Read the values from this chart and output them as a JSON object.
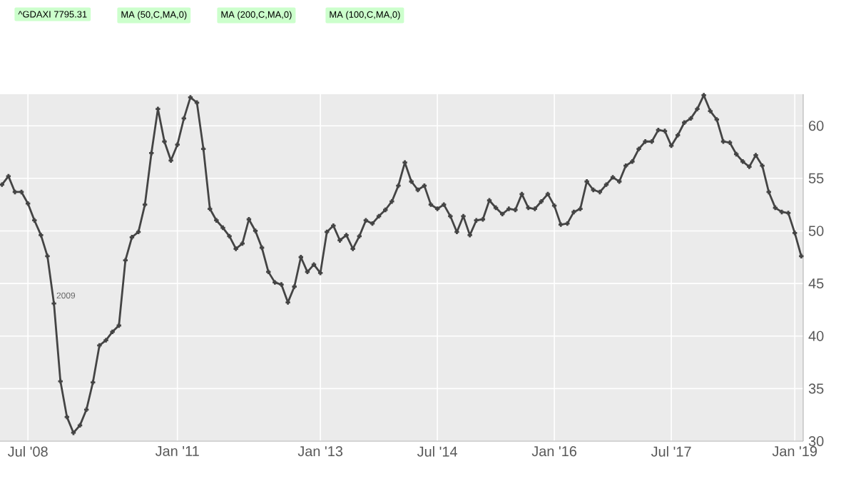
{
  "chart_data": {
    "type": "line",
    "categories": [
      null,
      null,
      null,
      null,
      "Jul '08",
      null,
      null,
      null,
      null,
      null,
      null,
      null,
      null,
      null,
      null,
      null,
      null,
      null,
      null,
      null,
      null,
      null,
      null,
      null,
      null,
      null,
      null,
      "Jan '11",
      null,
      null,
      null,
      null,
      null,
      null,
      null,
      null,
      null,
      null,
      null,
      null,
      null,
      null,
      null,
      null,
      null,
      null,
      null,
      null,
      null,
      "Jan '13",
      null,
      null,
      null,
      null,
      null,
      null,
      null,
      null,
      null,
      null,
      null,
      null,
      null,
      null,
      null,
      null,
      null,
      "Jul '14",
      null,
      null,
      null,
      null,
      null,
      null,
      null,
      null,
      null,
      null,
      null,
      null,
      null,
      null,
      null,
      null,
      null,
      "Jan '16",
      null,
      null,
      null,
      null,
      null,
      null,
      null,
      null,
      null,
      null,
      null,
      null,
      null,
      null,
      null,
      null,
      null,
      "Jul '17",
      null,
      null,
      null,
      null,
      null,
      null,
      null,
      null,
      null,
      null,
      null,
      null,
      null,
      null,
      null,
      null,
      null,
      null,
      "Jan '19",
      null
    ],
    "series": [
      {
        "color": "#444444",
        "values": [
          54.4,
          55.2,
          53.7,
          53.7,
          52.6,
          51.0,
          49.6,
          47.6,
          43.1,
          35.7,
          32.3,
          30.8,
          31.5,
          33.0,
          35.6,
          39.1,
          39.6,
          40.4,
          41.0,
          47.2,
          49.4,
          49.9,
          52.5,
          57.4,
          61.6,
          58.5,
          56.7,
          58.2,
          60.7,
          62.7,
          62.2,
          57.8,
          52.1,
          51.0,
          50.3,
          49.5,
          48.3,
          48.8,
          51.1,
          50.0,
          48.4,
          46.1,
          45.1,
          44.9,
          43.2,
          44.7,
          47.5,
          46.1,
          46.8,
          46.0,
          49.9,
          50.5,
          49.1,
          49.6,
          48.3,
          49.5,
          51.0,
          50.7,
          51.4,
          52.0,
          52.8,
          54.3,
          56.5,
          54.7,
          53.9,
          54.3,
          52.5,
          52.1,
          52.5,
          51.4,
          49.9,
          51.4,
          49.6,
          51.0,
          51.1,
          52.9,
          52.2,
          51.6,
          52.1,
          52.0,
          53.5,
          52.2,
          52.1,
          52.8,
          53.5,
          52.4,
          50.6,
          50.7,
          51.8,
          52.1,
          54.7,
          53.9,
          53.7,
          54.4,
          55.1,
          54.7,
          56.2,
          56.6,
          57.8,
          58.5,
          58.5,
          59.6,
          59.5,
          58.1,
          59.1,
          60.3,
          60.7,
          61.6,
          62.9,
          61.4,
          60.6,
          58.5,
          58.4,
          57.3,
          56.6,
          56.1,
          57.2,
          56.2,
          53.7,
          52.2,
          51.8,
          51.7,
          49.8,
          47.6
        ]
      }
    ],
    "ylim": [
      30,
      63
    ],
    "yticks": [
      30,
      35,
      40,
      45,
      50,
      55,
      60
    ],
    "grid": true,
    "marker": "cross",
    "line_style": "solid",
    "annotations": [
      "^GDAXI 7795.31",
      "MA (50,C,MA,0)",
      "MA (200,C,MA,0)",
      "MA (100,C,MA,0)",
      "2009"
    ]
  }
}
